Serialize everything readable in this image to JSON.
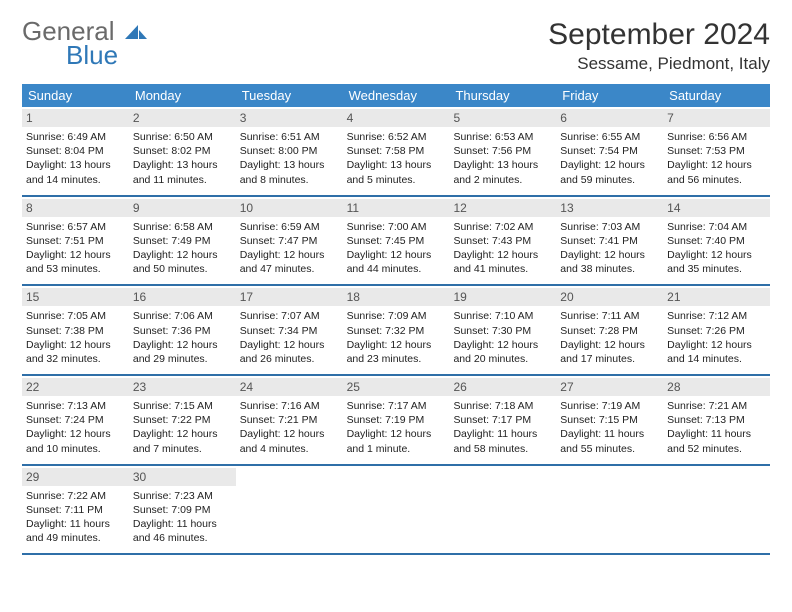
{
  "brand": {
    "line1": "General",
    "line2": "Blue"
  },
  "title": "September 2024",
  "location": "Sessame, Piedmont, Italy",
  "colors": {
    "header_bg": "#3b87c8",
    "week_border": "#2f6fa8",
    "daynum_bg": "#e9e9e9",
    "logo_gray": "#6a6a6a",
    "logo_blue": "#2f78b7"
  },
  "daysOfWeek": [
    "Sunday",
    "Monday",
    "Tuesday",
    "Wednesday",
    "Thursday",
    "Friday",
    "Saturday"
  ],
  "weeks": [
    [
      {
        "n": "1",
        "sunrise": "6:49 AM",
        "sunset": "8:04 PM",
        "daylight": "13 hours and 14 minutes."
      },
      {
        "n": "2",
        "sunrise": "6:50 AM",
        "sunset": "8:02 PM",
        "daylight": "13 hours and 11 minutes."
      },
      {
        "n": "3",
        "sunrise": "6:51 AM",
        "sunset": "8:00 PM",
        "daylight": "13 hours and 8 minutes."
      },
      {
        "n": "4",
        "sunrise": "6:52 AM",
        "sunset": "7:58 PM",
        "daylight": "13 hours and 5 minutes."
      },
      {
        "n": "5",
        "sunrise": "6:53 AM",
        "sunset": "7:56 PM",
        "daylight": "13 hours and 2 minutes."
      },
      {
        "n": "6",
        "sunrise": "6:55 AM",
        "sunset": "7:54 PM",
        "daylight": "12 hours and 59 minutes."
      },
      {
        "n": "7",
        "sunrise": "6:56 AM",
        "sunset": "7:53 PM",
        "daylight": "12 hours and 56 minutes."
      }
    ],
    [
      {
        "n": "8",
        "sunrise": "6:57 AM",
        "sunset": "7:51 PM",
        "daylight": "12 hours and 53 minutes."
      },
      {
        "n": "9",
        "sunrise": "6:58 AM",
        "sunset": "7:49 PM",
        "daylight": "12 hours and 50 minutes."
      },
      {
        "n": "10",
        "sunrise": "6:59 AM",
        "sunset": "7:47 PM",
        "daylight": "12 hours and 47 minutes."
      },
      {
        "n": "11",
        "sunrise": "7:00 AM",
        "sunset": "7:45 PM",
        "daylight": "12 hours and 44 minutes."
      },
      {
        "n": "12",
        "sunrise": "7:02 AM",
        "sunset": "7:43 PM",
        "daylight": "12 hours and 41 minutes."
      },
      {
        "n": "13",
        "sunrise": "7:03 AM",
        "sunset": "7:41 PM",
        "daylight": "12 hours and 38 minutes."
      },
      {
        "n": "14",
        "sunrise": "7:04 AM",
        "sunset": "7:40 PM",
        "daylight": "12 hours and 35 minutes."
      }
    ],
    [
      {
        "n": "15",
        "sunrise": "7:05 AM",
        "sunset": "7:38 PM",
        "daylight": "12 hours and 32 minutes."
      },
      {
        "n": "16",
        "sunrise": "7:06 AM",
        "sunset": "7:36 PM",
        "daylight": "12 hours and 29 minutes."
      },
      {
        "n": "17",
        "sunrise": "7:07 AM",
        "sunset": "7:34 PM",
        "daylight": "12 hours and 26 minutes."
      },
      {
        "n": "18",
        "sunrise": "7:09 AM",
        "sunset": "7:32 PM",
        "daylight": "12 hours and 23 minutes."
      },
      {
        "n": "19",
        "sunrise": "7:10 AM",
        "sunset": "7:30 PM",
        "daylight": "12 hours and 20 minutes."
      },
      {
        "n": "20",
        "sunrise": "7:11 AM",
        "sunset": "7:28 PM",
        "daylight": "12 hours and 17 minutes."
      },
      {
        "n": "21",
        "sunrise": "7:12 AM",
        "sunset": "7:26 PM",
        "daylight": "12 hours and 14 minutes."
      }
    ],
    [
      {
        "n": "22",
        "sunrise": "7:13 AM",
        "sunset": "7:24 PM",
        "daylight": "12 hours and 10 minutes."
      },
      {
        "n": "23",
        "sunrise": "7:15 AM",
        "sunset": "7:22 PM",
        "daylight": "12 hours and 7 minutes."
      },
      {
        "n": "24",
        "sunrise": "7:16 AM",
        "sunset": "7:21 PM",
        "daylight": "12 hours and 4 minutes."
      },
      {
        "n": "25",
        "sunrise": "7:17 AM",
        "sunset": "7:19 PM",
        "daylight": "12 hours and 1 minute."
      },
      {
        "n": "26",
        "sunrise": "7:18 AM",
        "sunset": "7:17 PM",
        "daylight": "11 hours and 58 minutes."
      },
      {
        "n": "27",
        "sunrise": "7:19 AM",
        "sunset": "7:15 PM",
        "daylight": "11 hours and 55 minutes."
      },
      {
        "n": "28",
        "sunrise": "7:21 AM",
        "sunset": "7:13 PM",
        "daylight": "11 hours and 52 minutes."
      }
    ],
    [
      {
        "n": "29",
        "sunrise": "7:22 AM",
        "sunset": "7:11 PM",
        "daylight": "11 hours and 49 minutes."
      },
      {
        "n": "30",
        "sunrise": "7:23 AM",
        "sunset": "7:09 PM",
        "daylight": "11 hours and 46 minutes."
      },
      null,
      null,
      null,
      null,
      null
    ]
  ]
}
